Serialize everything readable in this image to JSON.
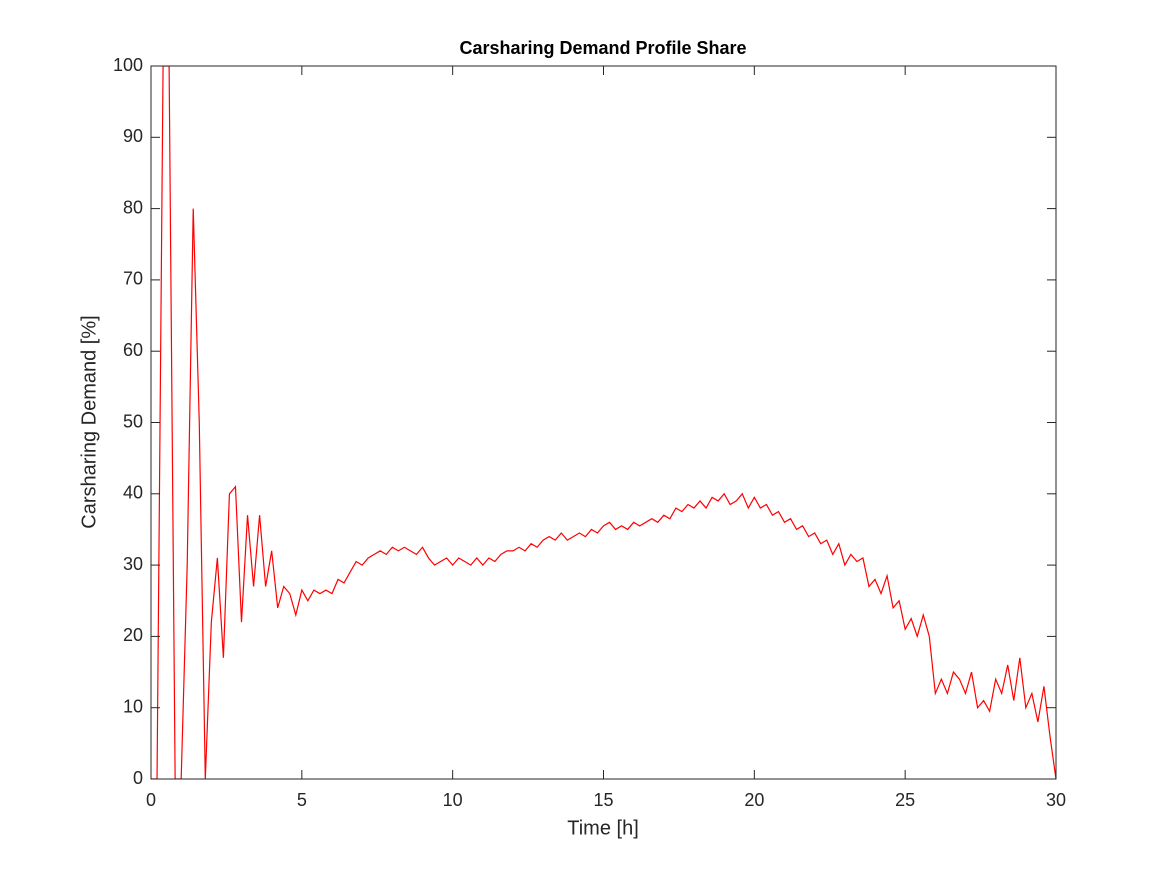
{
  "chart_data": {
    "type": "line",
    "title": "Carsharing Demand Profile Share",
    "x_label": "Time [h]",
    "y_label": "Carsharing Demand [%]",
    "color": "#ff0000",
    "x": [
      0,
      0.2,
      0.4,
      0.6,
      0.8,
      1,
      1.2,
      1.4,
      1.6,
      1.8,
      2,
      2.2,
      2.4,
      2.6,
      2.8,
      3,
      3.2,
      3.4,
      3.6,
      3.8,
      4,
      4.2,
      4.4,
      4.6,
      4.8,
      5,
      5.2,
      5.4,
      5.6,
      5.8,
      6,
      6.2,
      6.4,
      6.6,
      6.8,
      7,
      7.2,
      7.4,
      7.6,
      7.8,
      8,
      8.2,
      8.4,
      8.6,
      8.8,
      9,
      9.2,
      9.4,
      9.6,
      9.8,
      10,
      10.2,
      10.4,
      10.6,
      10.8,
      11,
      11.2,
      11.4,
      11.6,
      11.8,
      12,
      12.2,
      12.4,
      12.6,
      12.8,
      13,
      13.2,
      13.4,
      13.6,
      13.8,
      14,
      14.2,
      14.4,
      14.6,
      14.8,
      15,
      15.2,
      15.4,
      15.6,
      15.8,
      16,
      16.2,
      16.4,
      16.6,
      16.8,
      17,
      17.2,
      17.4,
      17.6,
      17.8,
      18,
      18.2,
      18.4,
      18.6,
      18.8,
      19,
      19.2,
      19.4,
      19.6,
      19.8,
      20,
      20.2,
      20.4,
      20.6,
      20.8,
      21,
      21.2,
      21.4,
      21.6,
      21.8,
      22,
      22.2,
      22.4,
      22.6,
      22.8,
      23,
      23.2,
      23.4,
      23.6,
      23.8,
      24,
      24.2,
      24.4,
      24.6,
      24.8,
      25,
      25.2,
      25.4,
      25.6,
      25.8,
      26,
      26.2,
      26.4,
      26.6,
      26.8,
      27,
      27.2,
      27.4,
      27.6,
      27.8,
      28,
      28.2,
      28.4,
      28.6,
      28.8,
      29,
      29.2,
      29.4,
      29.6,
      29.8,
      30
    ],
    "values": [
      0,
      0,
      100,
      100,
      0,
      0,
      30,
      80,
      50,
      0,
      22,
      31,
      17,
      40,
      41,
      22,
      37,
      27,
      37,
      27,
      32,
      24,
      27,
      26,
      23,
      26.5,
      25,
      26.5,
      26,
      26.5,
      26,
      28,
      27.5,
      29,
      30.5,
      30,
      31,
      31.5,
      32,
      31.5,
      32.5,
      32,
      32.5,
      32,
      31.5,
      32.5,
      31,
      30,
      30.5,
      31,
      30,
      31,
      30.5,
      30,
      31,
      30,
      31,
      30.5,
      31.5,
      32,
      32,
      32.5,
      32,
      33,
      32.5,
      33.5,
      34,
      33.5,
      34.5,
      33.5,
      34,
      34.5,
      34,
      35,
      34.5,
      35.5,
      36,
      35,
      35.5,
      35,
      36,
      35.5,
      36,
      36.5,
      36,
      37,
      36.5,
      38,
      37.5,
      38.5,
      38,
      39,
      38,
      39.5,
      39,
      40,
      38.5,
      39,
      40,
      38,
      39.5,
      38,
      38.5,
      37,
      37.5,
      36,
      36.5,
      35,
      35.5,
      34,
      34.5,
      33,
      33.5,
      31.5,
      33,
      30,
      31.5,
      30.5,
      31,
      27,
      28,
      26,
      28.5,
      24,
      25,
      21,
      22.5,
      20,
      23,
      20,
      12,
      14,
      12,
      15,
      14,
      12,
      15,
      10,
      11,
      9.5,
      14,
      12,
      16,
      11,
      17,
      10,
      12,
      8,
      13,
      6,
      0
    ],
    "xlim": [
      0,
      30
    ],
    "xticks": [
      0,
      5,
      10,
      15,
      20,
      25,
      30
    ],
    "ylim": [
      0,
      100
    ],
    "yticks": [
      0,
      10,
      20,
      30,
      40,
      50,
      60,
      70,
      80,
      90,
      100
    ],
    "grid": false
  }
}
